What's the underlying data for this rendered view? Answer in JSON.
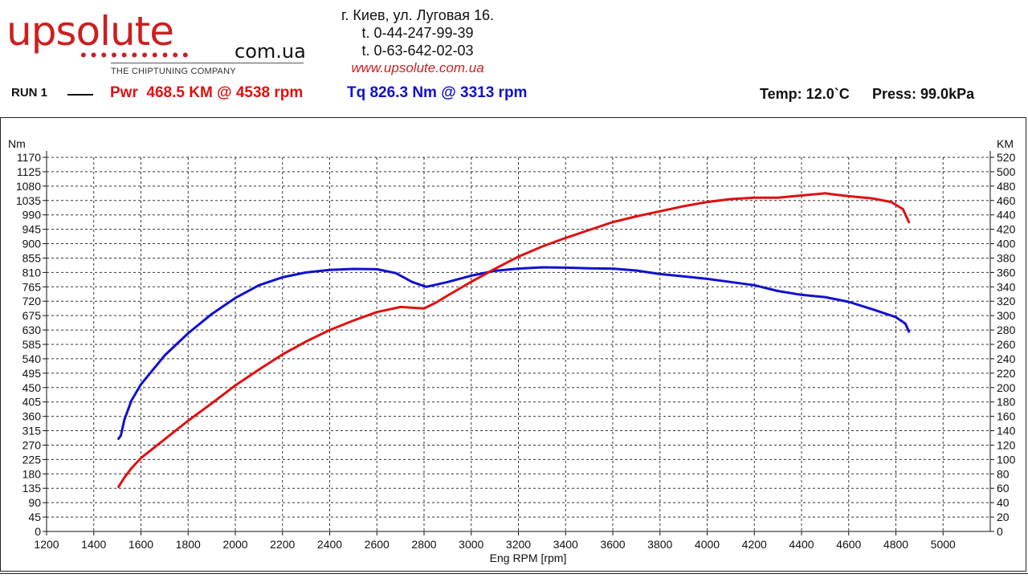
{
  "header": {
    "logo_main": "upsolute",
    "logo_domain": "com.ua",
    "logo_dots": "•••••••••••",
    "logo_tagline": "THE CHIPTUNING COMPANY",
    "address": "г. Киев, ул. Луговая 16.",
    "phone1": "t. 0-44-247-99-39",
    "phone2": "t. 0-63-642-02-03",
    "website": "www.upsolute.com.ua"
  },
  "run": {
    "label": "RUN 1",
    "power_summary": "Pwr  468.5 KM @ 4538 rpm",
    "torque_summary": "Tq 826.3 Nm @ 3313 rpm",
    "temperature": "Temp: 12.0`C",
    "pressure": "Press: 99.0kPa"
  },
  "colors": {
    "power": "#e01010",
    "torque": "#1010d0",
    "grid": "#333333"
  },
  "chart_data": {
    "type": "line",
    "xlabel": "Eng RPM [rpm]",
    "ylabel_left": "Nm",
    "ylabel_right": "KM",
    "xlim": [
      1200,
      5200
    ],
    "ylim_left": [
      0,
      1170
    ],
    "ylim_right": [
      0,
      520
    ],
    "x_ticks": [
      1200,
      1400,
      1600,
      1800,
      2000,
      2200,
      2400,
      2600,
      2800,
      3000,
      3200,
      3400,
      3600,
      3800,
      4000,
      4200,
      4400,
      4600,
      4800,
      5000
    ],
    "y_left_ticks": [
      0,
      45,
      90,
      135,
      180,
      225,
      270,
      315,
      360,
      405,
      450,
      495,
      540,
      585,
      630,
      675,
      720,
      765,
      810,
      855,
      900,
      945,
      990,
      1035,
      1080,
      1125,
      1170
    ],
    "y_right_ticks": [
      0,
      20,
      40,
      60,
      80,
      100,
      120,
      140,
      160,
      180,
      200,
      220,
      240,
      260,
      280,
      300,
      320,
      340,
      360,
      380,
      400,
      420,
      440,
      460,
      480,
      500,
      520
    ],
    "grid": true,
    "series": [
      {
        "name": "Tq",
        "axis": "left",
        "color": "#1010d0",
        "x": [
          1505,
          1515,
          1530,
          1560,
          1600,
          1700,
          1800,
          1900,
          2000,
          2100,
          2200,
          2300,
          2400,
          2500,
          2600,
          2680,
          2750,
          2810,
          2900,
          3000,
          3100,
          3200,
          3300,
          3400,
          3500,
          3600,
          3700,
          3800,
          3900,
          4000,
          4100,
          4200,
          4300,
          4400,
          4500,
          4600,
          4700,
          4800,
          4840,
          4855
        ],
        "values": [
          290,
          300,
          350,
          410,
          460,
          550,
          620,
          680,
          730,
          770,
          795,
          810,
          818,
          821,
          820,
          808,
          780,
          765,
          780,
          800,
          815,
          822,
          826,
          825,
          823,
          822,
          816,
          805,
          798,
          790,
          780,
          770,
          752,
          740,
          733,
          718,
          695,
          670,
          650,
          625
        ]
      },
      {
        "name": "Pwr",
        "axis": "right",
        "color": "#e01010",
        "x": [
          1505,
          1530,
          1560,
          1600,
          1700,
          1800,
          1900,
          2000,
          2100,
          2200,
          2300,
          2400,
          2500,
          2600,
          2700,
          2800,
          2850,
          2900,
          3000,
          3100,
          3200,
          3300,
          3400,
          3500,
          3600,
          3700,
          3800,
          3900,
          4000,
          4100,
          4200,
          4300,
          4400,
          4500,
          4538,
          4600,
          4700,
          4780,
          4830,
          4855
        ],
        "values": [
          62,
          75,
          88,
          102,
          128,
          154,
          178,
          203,
          225,
          246,
          264,
          280,
          293,
          305,
          312,
          310,
          318,
          328,
          347,
          365,
          382,
          396,
          408,
          419,
          430,
          438,
          445,
          452,
          458,
          462,
          464,
          464,
          467,
          470,
          468.5,
          466,
          463,
          458,
          448,
          430
        ]
      }
    ]
  }
}
